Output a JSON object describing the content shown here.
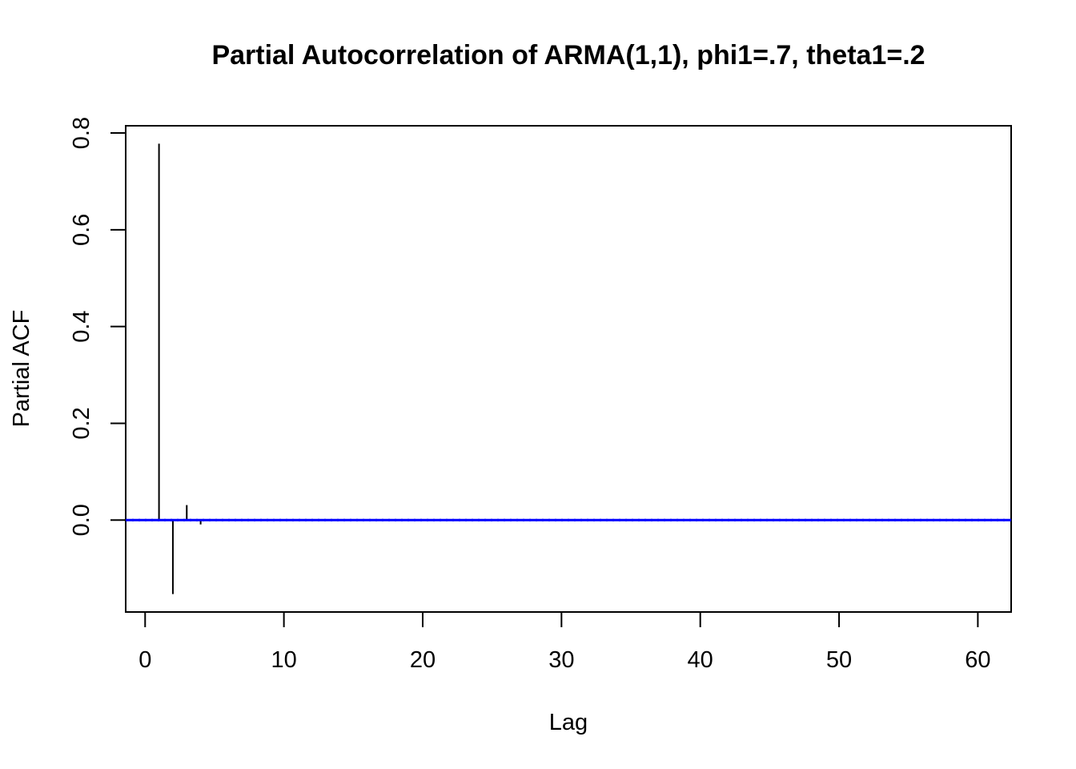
{
  "chart_data": {
    "type": "bar",
    "title": "Partial Autocorrelation of ARMA(1,1), phi1=.7, theta1=.2",
    "xlabel": "Lag",
    "ylabel": "Partial ACF",
    "xlim": [
      -1.4,
      62.4
    ],
    "ylim": [
      -0.19,
      0.815
    ],
    "x_ticks": [
      0,
      10,
      20,
      30,
      40,
      50,
      60
    ],
    "x_tick_labels": [
      "0",
      "10",
      "20",
      "30",
      "40",
      "50",
      "60"
    ],
    "y_ticks": [
      0.0,
      0.2,
      0.4,
      0.6,
      0.8
    ],
    "y_tick_labels": [
      "0.0",
      "0.2",
      "0.4",
      "0.6",
      "0.8"
    ],
    "grid": false,
    "confidence_band": {
      "upper": 0.0,
      "lower": 0.0,
      "color": "#0000ff",
      "style": "dashed"
    },
    "series": [
      {
        "x": [
          1,
          2,
          3,
          4,
          5,
          6,
          7,
          8,
          9,
          10,
          11,
          12,
          13,
          14,
          15,
          16,
          17,
          18,
          19,
          20,
          21,
          22,
          23,
          24,
          25,
          26,
          27,
          28,
          29,
          30,
          31,
          32,
          33,
          34,
          35,
          36,
          37,
          38,
          39,
          40,
          41,
          42,
          43,
          44,
          45,
          46,
          47,
          48,
          49,
          50,
          51,
          52,
          53,
          54,
          55,
          56,
          57,
          58,
          59,
          60
        ],
        "values": [
          0.778,
          -0.153,
          0.031,
          -0.009,
          0.002,
          -0.001,
          0,
          0,
          0,
          0,
          0,
          0,
          0,
          0,
          0,
          0,
          0,
          0,
          0,
          0,
          0,
          0,
          0,
          0,
          0,
          0,
          0,
          0,
          0,
          0,
          0,
          0,
          0,
          0,
          0,
          0,
          0,
          0,
          0,
          0,
          0,
          0,
          0,
          0,
          0,
          0,
          0,
          0,
          0,
          0,
          0,
          0,
          0,
          0,
          0,
          0,
          0,
          0,
          0,
          0
        ]
      }
    ]
  }
}
